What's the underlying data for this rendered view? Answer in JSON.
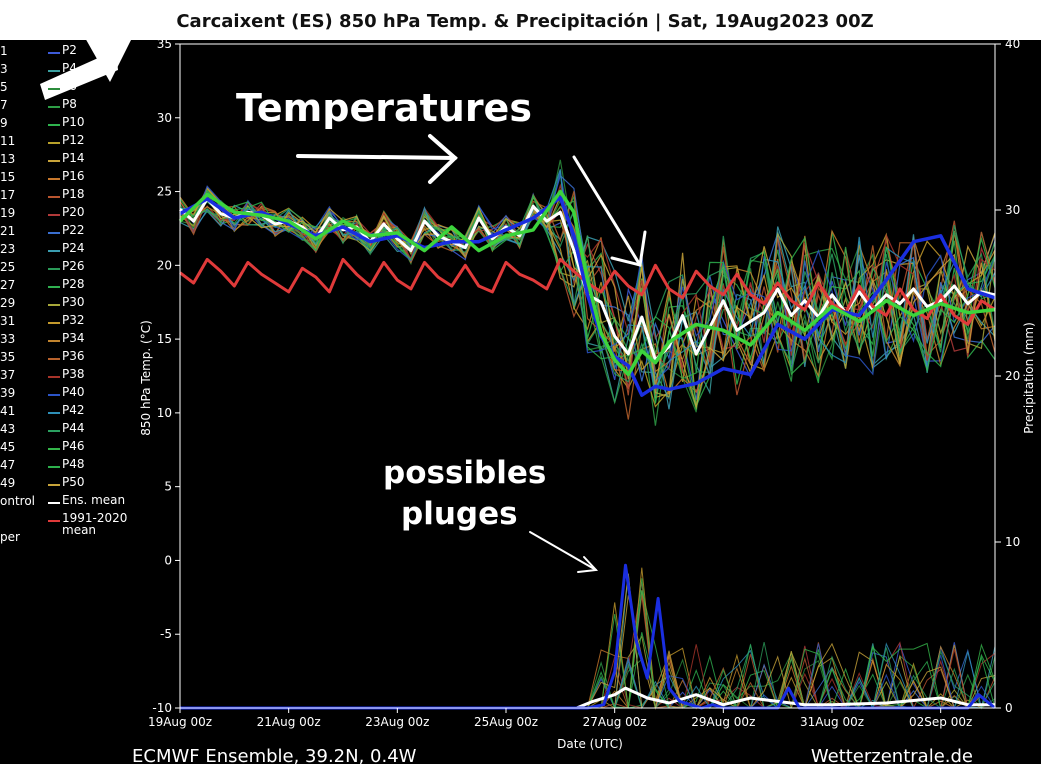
{
  "title": "Carcaixent  (ES)  850 hPa Temp. & Precipitación | Sat, 19Aug2023 00Z",
  "footer_left": "ECMWF Ensemble, 39.2N, 0.4W",
  "footer_right": "Wetterzentrale.de",
  "annotations": {
    "temperatures": "Temperatures",
    "possibles_line1": "possibles",
    "possibles_line2": "pluges"
  },
  "legend": {
    "left_numbers": [
      "1",
      "3",
      "5",
      "7",
      "9",
      "11",
      "13",
      "15",
      "17",
      "19",
      "21",
      "23",
      "25",
      "27",
      "29",
      "31",
      "33",
      "35",
      "37",
      "39",
      "41",
      "43",
      "45",
      "47",
      "49",
      "ontrol",
      "",
      "per"
    ],
    "items": [
      {
        "label": "P2",
        "color": "#3d5bd8"
      },
      {
        "label": "P4",
        "color": "#3aa0a0"
      },
      {
        "label": "P6",
        "color": "#2c8c3c"
      },
      {
        "label": "P8",
        "color": "#2e9e46"
      },
      {
        "label": "P10",
        "color": "#2fb34e"
      },
      {
        "label": "P12",
        "color": "#b8a12a"
      },
      {
        "label": "P14",
        "color": "#c9a43a"
      },
      {
        "label": "P16",
        "color": "#c8782c"
      },
      {
        "label": "P18",
        "color": "#b9552f"
      },
      {
        "label": "P20",
        "color": "#b23a3a"
      },
      {
        "label": "P22",
        "color": "#3a6fd0"
      },
      {
        "label": "P24",
        "color": "#3a9db0"
      },
      {
        "label": "P26",
        "color": "#2a9a58"
      },
      {
        "label": "P28",
        "color": "#30b050"
      },
      {
        "label": "P30",
        "color": "#a8a83a"
      },
      {
        "label": "P32",
        "color": "#c49a2c"
      },
      {
        "label": "P34",
        "color": "#c2842e"
      },
      {
        "label": "P36",
        "color": "#b8622c"
      },
      {
        "label": "P38",
        "color": "#a8342a"
      },
      {
        "label": "P40",
        "color": "#2c55c8"
      },
      {
        "label": "P42",
        "color": "#2e90b8"
      },
      {
        "label": "P44",
        "color": "#2aa060"
      },
      {
        "label": "P46",
        "color": "#34b54a"
      },
      {
        "label": "P48",
        "color": "#2db04c"
      },
      {
        "label": "P50",
        "color": "#c8a43a"
      },
      {
        "label": "Ens. mean",
        "color": "#ffffff"
      },
      {
        "label": "1991-2020\nmean",
        "color": "#e03a3a"
      }
    ]
  },
  "colors": {
    "background": "#000000",
    "axis": "#ffffff",
    "ens_mean": "#ffffff",
    "climate": "#e04040",
    "highlight_blue": "#1a2ee0",
    "highlight_green": "#3cd43c"
  },
  "chart_data": {
    "type": "line",
    "xlabel": "Date (UTC)",
    "ylabel_left": "850 hPa Temp. (°C)",
    "ylabel_right": "Precipitation (mm)",
    "ylim_left": [
      -10,
      35
    ],
    "ylim_right": [
      0,
      40
    ],
    "x_range_days": [
      0,
      15
    ],
    "x_ticks": [
      {
        "day": 0,
        "label": "19Aug 00z"
      },
      {
        "day": 2,
        "label": "21Aug 00z"
      },
      {
        "day": 4,
        "label": "23Aug 00z"
      },
      {
        "day": 6,
        "label": "25Aug 00z"
      },
      {
        "day": 8,
        "label": "27Aug 00z"
      },
      {
        "day": 10,
        "label": "29Aug 00z"
      },
      {
        "day": 12,
        "label": "31Aug 00z"
      },
      {
        "day": 14,
        "label": "02Sep 00z"
      }
    ],
    "y_ticks_left": [
      -10,
      -5,
      0,
      5,
      10,
      15,
      20,
      25,
      30,
      35
    ],
    "y_ticks_right": [
      0,
      10,
      20,
      30,
      40
    ],
    "series": [
      {
        "name": "Ens. mean",
        "color": "#ffffff",
        "width": 3,
        "x": [
          0,
          0.25,
          0.5,
          0.75,
          1,
          1.25,
          1.5,
          1.75,
          2,
          2.25,
          2.5,
          2.75,
          3,
          3.25,
          3.5,
          3.75,
          4,
          4.25,
          4.5,
          4.75,
          5,
          5.25,
          5.5,
          5.75,
          6,
          6.25,
          6.5,
          6.75,
          7,
          7.25,
          7.5,
          7.75,
          8,
          8.25,
          8.5,
          8.75,
          9,
          9.25,
          9.5,
          9.75,
          10,
          10.25,
          10.5,
          10.75,
          11,
          11.25,
          11.5,
          11.75,
          12,
          12.25,
          12.5,
          12.75,
          13,
          13.25,
          13.5,
          13.75,
          14,
          14.25,
          14.5,
          14.75,
          15
        ],
        "y": [
          23.8,
          23,
          24.5,
          23.5,
          23.2,
          23.6,
          23.4,
          22.8,
          23,
          22.6,
          21.8,
          23.2,
          22.4,
          22.6,
          21.6,
          22.8,
          21.8,
          21,
          23,
          22,
          21.6,
          21.2,
          23.2,
          21.8,
          22.6,
          22,
          24,
          23,
          23.6,
          21,
          18,
          17.5,
          15.2,
          14,
          16.5,
          13.6,
          14.5,
          16.6,
          14,
          15.8,
          17.6,
          15.6,
          16.2,
          16.8,
          18.4,
          16.6,
          17.6,
          16.5,
          18,
          16.8,
          18.2,
          17,
          18,
          17.4,
          18.4,
          17.2,
          17.6,
          18.6,
          17.4,
          18.2,
          18
        ]
      },
      {
        "name": "1991-2020 mean",
        "color": "#e03a3a",
        "width": 3,
        "x": [
          0,
          0.25,
          0.5,
          0.75,
          1,
          1.25,
          1.5,
          1.75,
          2,
          2.25,
          2.5,
          2.75,
          3,
          3.25,
          3.5,
          3.75,
          4,
          4.25,
          4.5,
          4.75,
          5,
          5.25,
          5.5,
          5.75,
          6,
          6.25,
          6.5,
          6.75,
          7,
          7.25,
          7.5,
          7.75,
          8,
          8.25,
          8.5,
          8.75,
          9,
          9.25,
          9.5,
          9.75,
          10,
          10.25,
          10.5,
          10.75,
          11,
          11.25,
          11.5,
          11.75,
          12,
          12.25,
          12.5,
          12.75,
          13,
          13.25,
          13.5,
          13.75,
          14,
          14.25,
          14.5,
          14.75,
          15
        ],
        "y": [
          19.5,
          18.8,
          20.4,
          19.6,
          18.6,
          20.2,
          19.4,
          18.8,
          18.2,
          19.8,
          19.2,
          18.2,
          20.4,
          19.4,
          18.6,
          20.2,
          19,
          18.4,
          20.2,
          19.2,
          18.6,
          20,
          18.6,
          18.2,
          20.2,
          19.4,
          19,
          18.4,
          20.4,
          19.6,
          18.8,
          18.2,
          19.6,
          18.6,
          18,
          20,
          18.4,
          17.8,
          19.6,
          18.6,
          18,
          19.4,
          18,
          17.4,
          18.8,
          17.6,
          17,
          18.8,
          17.4,
          16.8,
          18.6,
          17.2,
          16.6,
          18.4,
          17,
          16.4,
          18,
          16.6,
          16,
          17.6,
          17
        ]
      },
      {
        "name": "blue member",
        "color": "#1a2ee0",
        "width": 3.5,
        "x": [
          0,
          0.5,
          1,
          1.5,
          2,
          2.5,
          3,
          3.5,
          4,
          4.5,
          5,
          5.5,
          6,
          6.5,
          7,
          7.25,
          7.5,
          7.75,
          8,
          8.25,
          8.5,
          8.75,
          9,
          9.5,
          10,
          10.5,
          11,
          11.5,
          12,
          12.5,
          13,
          13.5,
          14,
          14.5,
          15
        ],
        "y": [
          23.5,
          24.5,
          23.2,
          23.6,
          22.8,
          22,
          22.6,
          21.6,
          22,
          21.2,
          21.6,
          21.6,
          22.4,
          23.2,
          24.6,
          22,
          18,
          15.2,
          13.8,
          13.2,
          11.2,
          11.8,
          11.6,
          12,
          13,
          12.6,
          16,
          15,
          17,
          16.6,
          19,
          21.6,
          22,
          18.4,
          17.8
        ]
      },
      {
        "name": "green member",
        "color": "#3cd43c",
        "width": 3.5,
        "x": [
          0,
          0.5,
          1,
          1.5,
          2,
          2.5,
          3,
          3.5,
          4,
          4.5,
          5,
          5.5,
          6,
          6.5,
          7,
          7.25,
          7.5,
          7.75,
          8,
          8.25,
          8.5,
          8.75,
          9,
          9.5,
          10,
          10.5,
          11,
          11.5,
          12,
          12.5,
          13,
          13.5,
          14,
          14.5,
          15
        ],
        "y": [
          23,
          24.8,
          23.6,
          23.4,
          23,
          21.8,
          23,
          22,
          22.2,
          21,
          22.6,
          21,
          22,
          22.4,
          25,
          23.6,
          19,
          15.4,
          13.6,
          12.6,
          14.2,
          13.4,
          14.8,
          16,
          15.6,
          14.6,
          16.8,
          15.6,
          17.2,
          16.2,
          17.6,
          16.6,
          17.4,
          16.8,
          17
        ]
      }
    ],
    "precip_series": [
      {
        "name": "Ens. mean precip",
        "color": "#ffffff",
        "x": [
          0,
          7.3,
          7.6,
          8,
          8.2,
          8.6,
          9,
          9.5,
          10,
          10.5,
          11,
          11.5,
          12,
          13,
          14,
          14.5,
          15
        ],
        "y": [
          0,
          0,
          0.4,
          0.8,
          1.2,
          0.6,
          0.3,
          0.8,
          0.2,
          0.6,
          0.4,
          0.2,
          0.2,
          0.3,
          0.6,
          0.2,
          0.2
        ]
      },
      {
        "name": "blue precip",
        "color": "#1a2ee0",
        "x": [
          0,
          7.5,
          7.8,
          8,
          8.2,
          8.4,
          8.6,
          8.8,
          9,
          9.2,
          9.4,
          9.6,
          9.8,
          10,
          11,
          11.2,
          11.4,
          12,
          14.5,
          14.7,
          15
        ],
        "y": [
          0,
          0,
          0.2,
          2.2,
          8.6,
          4,
          1.8,
          6.6,
          1.2,
          0.4,
          0.2,
          0,
          0.2,
          0,
          0,
          1.2,
          0,
          0,
          0,
          0.8,
          0
        ]
      }
    ]
  }
}
